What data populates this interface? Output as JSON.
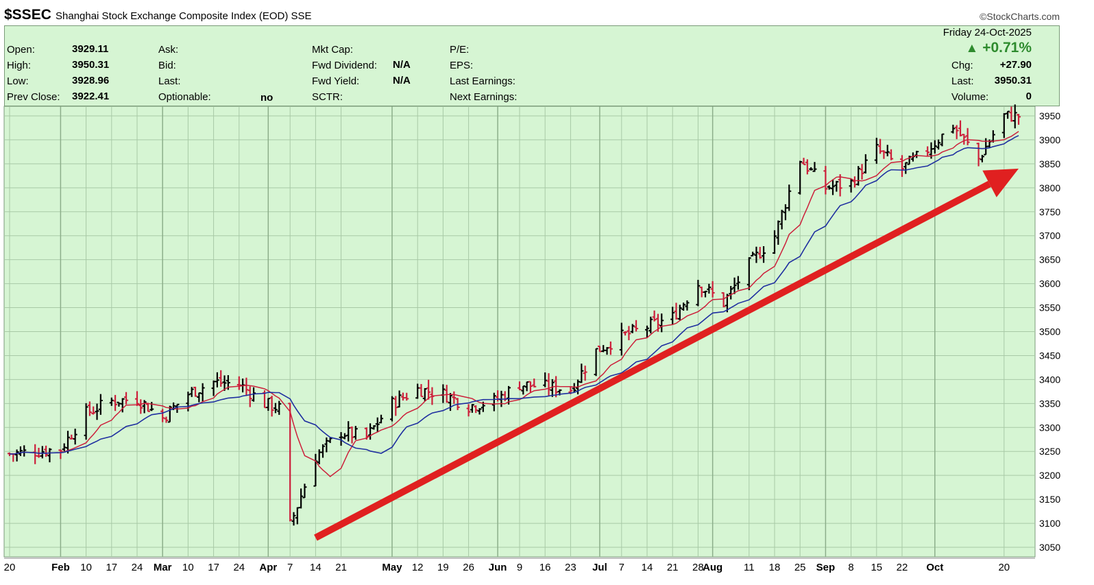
{
  "header": {
    "ticker": "$SSEC",
    "name": "Shanghai Stock Exchange Composite Index (EOD)",
    "exchange": "SSE",
    "watermark": "©StockCharts.com"
  },
  "info": {
    "open_label": "Open:",
    "open": "3929.11",
    "high_label": "High:",
    "high": "3950.31",
    "low_label": "Low:",
    "low": "3928.96",
    "prev_label": "Prev Close:",
    "prev": "3922.41",
    "ask_label": "Ask:",
    "bid_label": "Bid:",
    "last_label": "Last:",
    "optionable_label": "Optionable:",
    "optionable": "no",
    "mktcap_label": "Mkt Cap:",
    "fwd_div_label": "Fwd Dividend:",
    "fwd_div": "N/A",
    "fwd_yield_label": "Fwd Yield:",
    "fwd_yield": "N/A",
    "sctr_label": "SCTR:",
    "pe_label": "P/E:",
    "eps_label": "EPS:",
    "last_earn_label": "Last Earnings:",
    "next_earn_label": "Next Earnings:",
    "date": "Friday  24-Oct-2025",
    "change_pct": "+0.71%",
    "chg_label": "Chg:",
    "chg": "+27.90",
    "last_val_label": "Last:",
    "last_val": "3950.31",
    "volume_label": "Volume:",
    "volume": "0"
  },
  "colors": {
    "panel_bg": "#d6f5d3",
    "up_bar": "#000000",
    "down_bar": "#cc1f3a",
    "ma_short": "#cc1f3a",
    "ma_long": "#1f2fa0",
    "arrow": "#e02020",
    "grid": "#a8c9a6"
  },
  "chart_data": {
    "type": "ohlc_bar",
    "ylim": [
      3030,
      3970
    ],
    "yticks": [
      3050,
      3100,
      3150,
      3200,
      3250,
      3300,
      3350,
      3400,
      3450,
      3500,
      3550,
      3600,
      3650,
      3700,
      3750,
      3800,
      3850,
      3900,
      3950
    ],
    "xticks": [
      {
        "label": "20",
        "month": false
      },
      {
        "label": "Feb",
        "month": true
      },
      {
        "label": "10",
        "month": false
      },
      {
        "label": "17",
        "month": false
      },
      {
        "label": "24",
        "month": false
      },
      {
        "label": "Mar",
        "month": true
      },
      {
        "label": "10",
        "month": false
      },
      {
        "label": "17",
        "month": false
      },
      {
        "label": "24",
        "month": false
      },
      {
        "label": "Apr",
        "month": true
      },
      {
        "label": "7",
        "month": false
      },
      {
        "label": "14",
        "month": false
      },
      {
        "label": "21",
        "month": false
      },
      {
        "label": "May",
        "month": true
      },
      {
        "label": "12",
        "month": false
      },
      {
        "label": "19",
        "month": false
      },
      {
        "label": "26",
        "month": false
      },
      {
        "label": "Jun",
        "month": true
      },
      {
        "label": "9",
        "month": false
      },
      {
        "label": "16",
        "month": false
      },
      {
        "label": "23",
        "month": false
      },
      {
        "label": "Jul",
        "month": true
      },
      {
        "label": "7",
        "month": false
      },
      {
        "label": "14",
        "month": false
      },
      {
        "label": "21",
        "month": false
      },
      {
        "label": "28",
        "month": false
      },
      {
        "label": "Aug",
        "month": true
      },
      {
        "label": "11",
        "month": false
      },
      {
        "label": "18",
        "month": false
      },
      {
        "label": "25",
        "month": false
      },
      {
        "label": "Sep",
        "month": true
      },
      {
        "label": "8",
        "month": false
      },
      {
        "label": "15",
        "month": false
      },
      {
        "label": "22",
        "month": false
      },
      {
        "label": "Oct",
        "month": true
      },
      {
        "label": "20",
        "month": false
      }
    ],
    "price_path": [
      {
        "date": "2025-01-20",
        "close": 3245
      },
      {
        "date": "2025-01-27",
        "close": 3250
      },
      {
        "date": "2025-02-03",
        "close": 3255
      },
      {
        "date": "2025-02-10",
        "close": 3330
      },
      {
        "date": "2025-02-17",
        "close": 3355
      },
      {
        "date": "2025-02-24",
        "close": 3360
      },
      {
        "date": "2025-03-03",
        "close": 3320
      },
      {
        "date": "2025-03-10",
        "close": 3370
      },
      {
        "date": "2025-03-17",
        "close": 3395
      },
      {
        "date": "2025-03-24",
        "close": 3390
      },
      {
        "date": "2025-03-31",
        "close": 3350
      },
      {
        "date": "2025-04-04",
        "close": 3340
      },
      {
        "date": "2025-04-07",
        "close": 3096
      },
      {
        "date": "2025-04-14",
        "close": 3240
      },
      {
        "date": "2025-04-21",
        "close": 3290
      },
      {
        "date": "2025-04-28",
        "close": 3280
      },
      {
        "date": "2025-05-05",
        "close": 3350
      },
      {
        "date": "2025-05-12",
        "close": 3380
      },
      {
        "date": "2025-05-19",
        "close": 3370
      },
      {
        "date": "2025-05-26",
        "close": 3345
      },
      {
        "date": "2025-06-02",
        "close": 3355
      },
      {
        "date": "2025-06-09",
        "close": 3390
      },
      {
        "date": "2025-06-16",
        "close": 3385
      },
      {
        "date": "2025-06-23",
        "close": 3380
      },
      {
        "date": "2025-06-30",
        "close": 3460
      },
      {
        "date": "2025-07-07",
        "close": 3490
      },
      {
        "date": "2025-07-14",
        "close": 3510
      },
      {
        "date": "2025-07-21",
        "close": 3530
      },
      {
        "date": "2025-07-28",
        "close": 3600
      },
      {
        "date": "2025-08-04",
        "close": 3560
      },
      {
        "date": "2025-08-11",
        "close": 3640
      },
      {
        "date": "2025-08-18",
        "close": 3700
      },
      {
        "date": "2025-08-25",
        "close": 3860
      },
      {
        "date": "2025-09-01",
        "close": 3800
      },
      {
        "date": "2025-09-08",
        "close": 3810
      },
      {
        "date": "2025-09-15",
        "close": 3880
      },
      {
        "date": "2025-09-22",
        "close": 3840
      },
      {
        "date": "2025-09-29",
        "close": 3880
      },
      {
        "date": "2025-10-06",
        "close": 3930
      },
      {
        "date": "2025-10-13",
        "close": 3860
      },
      {
        "date": "2025-10-20",
        "close": 3950
      }
    ],
    "trend_arrow": {
      "from": {
        "date": "2025-04-14",
        "value": 3070
      },
      "to": {
        "date": "2025-10-24",
        "value": 3840
      }
    },
    "grid": true
  }
}
